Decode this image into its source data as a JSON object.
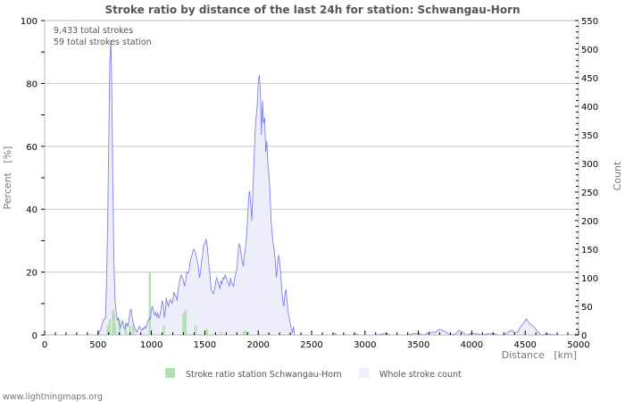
{
  "title": "Stroke ratio by distance of the last 24h for station: Schwangau-Horn",
  "annotations": [
    "9,433 total strokes",
    "59 total strokes station"
  ],
  "footer": "www.lightningmaps.org",
  "colors": {
    "count_line": "#8080ee",
    "count_fill": "#eeeefa",
    "ratio_bar": "#b3dfb3",
    "grid": "#c8c8c8",
    "axis": "#bbbbbb"
  },
  "legend": [
    {
      "label": "Stroke ratio station Schwangau-Horn",
      "color": "#b3dfb3"
    },
    {
      "label": "Whole stroke count",
      "color": "#eeeefa"
    }
  ],
  "chart_data": {
    "type": "bar+area",
    "title": "Stroke ratio by distance of the last 24h for station: Schwangau-Horn",
    "xlabel": "Distance   [km]",
    "ylabel_left": "Percent   [%]",
    "ylabel_right": "Count",
    "xlim": [
      0,
      5000
    ],
    "ylim_left": [
      0,
      100
    ],
    "ylim_right": [
      0,
      550
    ],
    "x_ticks": [
      0,
      500,
      1000,
      1500,
      2000,
      2500,
      3000,
      3500,
      4000,
      4500,
      5000
    ],
    "y_ticks_left": [
      0,
      20,
      40,
      60,
      80,
      100
    ],
    "y_ticks_right": [
      0,
      50,
      100,
      150,
      200,
      250,
      300,
      350,
      400,
      450,
      500,
      550
    ],
    "grid": true,
    "legend_position": "bottom",
    "series": [
      {
        "name": "Whole stroke count",
        "axis": "right",
        "type": "area",
        "points": [
          [
            0,
            0
          ],
          [
            500,
            0
          ],
          [
            525,
            10
          ],
          [
            540,
            20
          ],
          [
            555,
            28
          ],
          [
            570,
            30
          ],
          [
            580,
            100
          ],
          [
            590,
            200
          ],
          [
            600,
            330
          ],
          [
            610,
            480
          ],
          [
            620,
            515
          ],
          [
            630,
            420
          ],
          [
            640,
            250
          ],
          [
            650,
            120
          ],
          [
            660,
            60
          ],
          [
            670,
            40
          ],
          [
            680,
            25
          ],
          [
            690,
            30
          ],
          [
            700,
            18
          ],
          [
            710,
            12
          ],
          [
            720,
            20
          ],
          [
            730,
            25
          ],
          [
            740,
            15
          ],
          [
            750,
            10
          ],
          [
            760,
            18
          ],
          [
            770,
            20
          ],
          [
            780,
            15
          ],
          [
            790,
            28
          ],
          [
            800,
            42
          ],
          [
            810,
            45
          ],
          [
            820,
            30
          ],
          [
            830,
            20
          ],
          [
            840,
            15
          ],
          [
            850,
            10
          ],
          [
            860,
            5
          ],
          [
            870,
            8
          ],
          [
            880,
            12
          ],
          [
            890,
            15
          ],
          [
            900,
            10
          ],
          [
            910,
            8
          ],
          [
            920,
            12
          ],
          [
            930,
            10
          ],
          [
            940,
            15
          ],
          [
            950,
            12
          ],
          [
            960,
            20
          ],
          [
            970,
            25
          ],
          [
            980,
            30
          ],
          [
            990,
            28
          ],
          [
            1000,
            45
          ],
          [
            1010,
            50
          ],
          [
            1020,
            40
          ],
          [
            1030,
            35
          ],
          [
            1040,
            40
          ],
          [
            1050,
            32
          ],
          [
            1060,
            38
          ],
          [
            1070,
            30
          ],
          [
            1080,
            35
          ],
          [
            1090,
            45
          ],
          [
            1100,
            60
          ],
          [
            1110,
            55
          ],
          [
            1120,
            30
          ],
          [
            1130,
            40
          ],
          [
            1140,
            65
          ],
          [
            1150,
            55
          ],
          [
            1160,
            50
          ],
          [
            1170,
            60
          ],
          [
            1180,
            62
          ],
          [
            1190,
            55
          ],
          [
            1200,
            58
          ],
          [
            1210,
            75
          ],
          [
            1220,
            70
          ],
          [
            1230,
            68
          ],
          [
            1240,
            60
          ],
          [
            1250,
            80
          ],
          [
            1260,
            90
          ],
          [
            1270,
            100
          ],
          [
            1280,
            105
          ],
          [
            1290,
            100
          ],
          [
            1300,
            95
          ],
          [
            1310,
            85
          ],
          [
            1320,
            95
          ],
          [
            1330,
            110
          ],
          [
            1340,
            108
          ],
          [
            1350,
            110
          ],
          [
            1360,
            125
          ],
          [
            1370,
            135
          ],
          [
            1380,
            140
          ],
          [
            1390,
            148
          ],
          [
            1400,
            150
          ],
          [
            1410,
            145
          ],
          [
            1420,
            138
          ],
          [
            1430,
            130
          ],
          [
            1440,
            120
          ],
          [
            1450,
            100
          ],
          [
            1460,
            110
          ],
          [
            1470,
            130
          ],
          [
            1480,
            140
          ],
          [
            1490,
            158
          ],
          [
            1500,
            160
          ],
          [
            1510,
            168
          ],
          [
            1520,
            160
          ],
          [
            1530,
            140
          ],
          [
            1540,
            120
          ],
          [
            1550,
            100
          ],
          [
            1560,
            80
          ],
          [
            1570,
            75
          ],
          [
            1580,
            72
          ],
          [
            1590,
            80
          ],
          [
            1600,
            90
          ],
          [
            1610,
            100
          ],
          [
            1620,
            95
          ],
          [
            1630,
            88
          ],
          [
            1640,
            80
          ],
          [
            1650,
            95
          ],
          [
            1660,
            90
          ],
          [
            1670,
            100
          ],
          [
            1680,
            98
          ],
          [
            1690,
            105
          ],
          [
            1700,
            100
          ],
          [
            1710,
            95
          ],
          [
            1720,
            90
          ],
          [
            1730,
            85
          ],
          [
            1740,
            100
          ],
          [
            1750,
            92
          ],
          [
            1760,
            88
          ],
          [
            1770,
            85
          ],
          [
            1780,
            100
          ],
          [
            1790,
            108
          ],
          [
            1800,
            115
          ],
          [
            1810,
            140
          ],
          [
            1820,
            160
          ],
          [
            1830,
            155
          ],
          [
            1840,
            140
          ],
          [
            1850,
            130
          ],
          [
            1860,
            120
          ],
          [
            1870,
            140
          ],
          [
            1880,
            150
          ],
          [
            1890,
            170
          ],
          [
            1900,
            200
          ],
          [
            1910,
            240
          ],
          [
            1920,
            252
          ],
          [
            1930,
            230
          ],
          [
            1940,
            200
          ],
          [
            1950,
            250
          ],
          [
            1960,
            300
          ],
          [
            1970,
            350
          ],
          [
            1980,
            380
          ],
          [
            1990,
            400
          ],
          [
            2000,
            440
          ],
          [
            2010,
            455
          ],
          [
            2020,
            430
          ],
          [
            2030,
            350
          ],
          [
            2040,
            410
          ],
          [
            2050,
            370
          ],
          [
            2060,
            380
          ],
          [
            2070,
            320
          ],
          [
            2080,
            340
          ],
          [
            2090,
            300
          ],
          [
            2100,
            280
          ],
          [
            2110,
            250
          ],
          [
            2120,
            200
          ],
          [
            2130,
            180
          ],
          [
            2140,
            160
          ],
          [
            2150,
            150
          ],
          [
            2160,
            130
          ],
          [
            2170,
            100
          ],
          [
            2180,
            120
          ],
          [
            2190,
            140
          ],
          [
            2200,
            130
          ],
          [
            2210,
            110
          ],
          [
            2220,
            80
          ],
          [
            2230,
            60
          ],
          [
            2240,
            50
          ],
          [
            2250,
            70
          ],
          [
            2260,
            80
          ],
          [
            2270,
            60
          ],
          [
            2280,
            40
          ],
          [
            2290,
            30
          ],
          [
            2300,
            20
          ],
          [
            2310,
            10
          ],
          [
            2320,
            5
          ],
          [
            2330,
            15
          ],
          [
            2340,
            0
          ],
          [
            2700,
            0
          ],
          [
            2720,
            3
          ],
          [
            2740,
            0
          ],
          [
            2900,
            0
          ],
          [
            2920,
            2
          ],
          [
            2940,
            0
          ],
          [
            3100,
            0
          ],
          [
            3200,
            3
          ],
          [
            3240,
            0
          ],
          [
            3400,
            0
          ],
          [
            3450,
            2
          ],
          [
            3500,
            3
          ],
          [
            3550,
            0
          ],
          [
            3600,
            5
          ],
          [
            3650,
            4
          ],
          [
            3700,
            10
          ],
          [
            3730,
            8
          ],
          [
            3760,
            5
          ],
          [
            3800,
            0
          ],
          [
            3850,
            2
          ],
          [
            3880,
            8
          ],
          [
            3910,
            5
          ],
          [
            3950,
            0
          ],
          [
            4000,
            3
          ],
          [
            4050,
            2
          ],
          [
            4100,
            0
          ],
          [
            4150,
            2
          ],
          [
            4200,
            3
          ],
          [
            4250,
            0
          ],
          [
            4300,
            0
          ],
          [
            4350,
            6
          ],
          [
            4380,
            8
          ],
          [
            4400,
            4
          ],
          [
            4430,
            5
          ],
          [
            4460,
            15
          ],
          [
            4490,
            22
          ],
          [
            4510,
            28
          ],
          [
            4540,
            20
          ],
          [
            4580,
            15
          ],
          [
            4620,
            5
          ],
          [
            4650,
            0
          ],
          [
            4700,
            2
          ],
          [
            4800,
            0
          ],
          [
            4950,
            0
          ],
          [
            4980,
            2
          ],
          [
            5000,
            0
          ]
        ]
      },
      {
        "name": "Stroke ratio station Schwangau-Horn",
        "axis": "left",
        "type": "bar",
        "bars": [
          [
            590,
            3
          ],
          [
            610,
            5
          ],
          [
            640,
            8
          ],
          [
            650,
            7
          ],
          [
            660,
            4
          ],
          [
            700,
            5
          ],
          [
            760,
            4
          ],
          [
            800,
            3
          ],
          [
            830,
            3
          ],
          [
            985,
            20
          ],
          [
            1115,
            3
          ],
          [
            1300,
            7
          ],
          [
            1310,
            6
          ],
          [
            1320,
            8
          ],
          [
            1415,
            3
          ],
          [
            1520,
            2
          ],
          [
            1650,
            1
          ],
          [
            1860,
            1
          ],
          [
            1880,
            1.5
          ],
          [
            1900,
            1
          ],
          [
            2010,
            0.5
          ]
        ]
      }
    ]
  }
}
